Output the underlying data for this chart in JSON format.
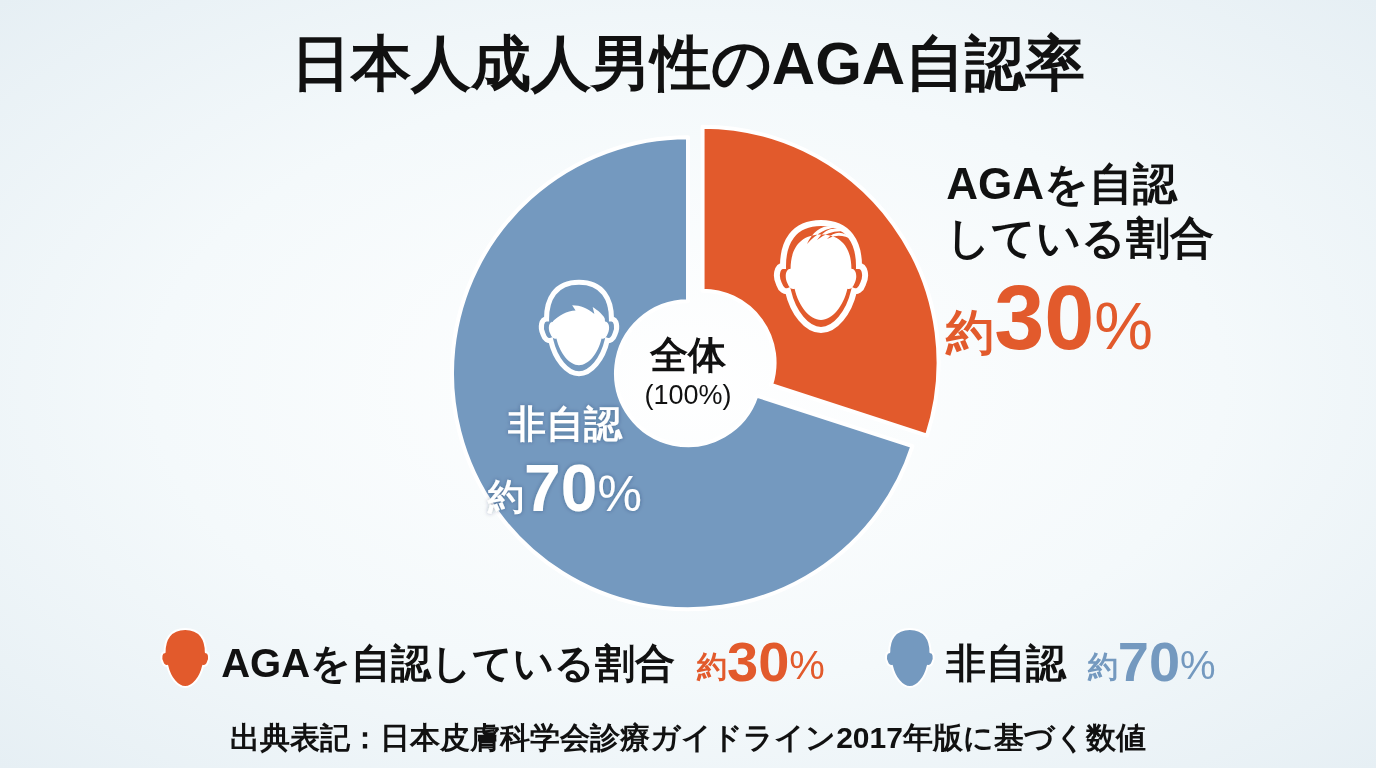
{
  "chart_data": {
    "type": "donut",
    "title": "日本人成人男性のAGA自認率",
    "categories": [
      "AGAを自認している割合",
      "非自認"
    ],
    "values": [
      30,
      70
    ],
    "colors": [
      "#e25a2c",
      "#7499bf"
    ],
    "value_labels": [
      "約30%",
      "約70%"
    ],
    "legend": "bottom",
    "annotations": [
      "全体",
      "(100%)",
      "出典表記：日本皮膚科学会診療ガイドライン2017年版に基づく数値"
    ]
  }
}
